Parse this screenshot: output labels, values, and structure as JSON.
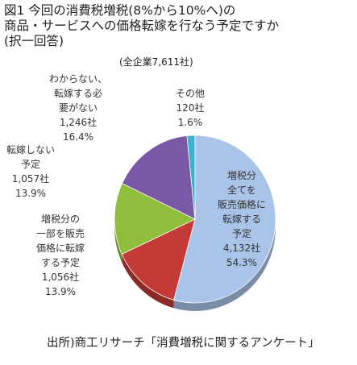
{
  "title_lines": [
    "図1 今回の消費税増税(8%から10%へ)の",
    "商品・サービスへの価格転嫁を行なう予定ですか",
    "(択一回答)"
  ],
  "subtitle": "(全企業7,611社)",
  "source": "出所)商工リサーチ「消費増税に関するアンケート」",
  "chart_data": {
    "type": "pie",
    "title": "図1 今回の消費税増税(8%から10%へ)の商品・サービスへの価格転嫁を行なう予定ですか(択一回答)",
    "subtitle": "(全企業7,611社)",
    "slices": [
      {
        "label_lines": [
          "増税分",
          "全てを",
          "販売価格に",
          "転嫁する",
          "予定"
        ],
        "count": "4,132社",
        "percent": "54.3%",
        "value": 54.3,
        "color": "#a9c4e8"
      },
      {
        "label_lines": [
          "増税分の",
          "一部を販売",
          "価格に転嫁",
          "する予定"
        ],
        "count": "1,056社",
        "percent": "13.9%",
        "value": 13.9,
        "color": "#c33a36"
      },
      {
        "label_lines": [
          "転嫁しない",
          "予定"
        ],
        "count": "1,057社",
        "percent": "13.9%",
        "value": 13.9,
        "color": "#8fbf3a"
      },
      {
        "label_lines": [
          "わからない、",
          "転嫁する必",
          "要がない"
        ],
        "count": "1,246社",
        "percent": "16.4%",
        "value": 16.4,
        "color": "#7a58a8"
      },
      {
        "label_lines": [
          "その他"
        ],
        "count": "120社",
        "percent": "1.6%",
        "value": 1.6,
        "color": "#3ab3d1"
      }
    ]
  }
}
